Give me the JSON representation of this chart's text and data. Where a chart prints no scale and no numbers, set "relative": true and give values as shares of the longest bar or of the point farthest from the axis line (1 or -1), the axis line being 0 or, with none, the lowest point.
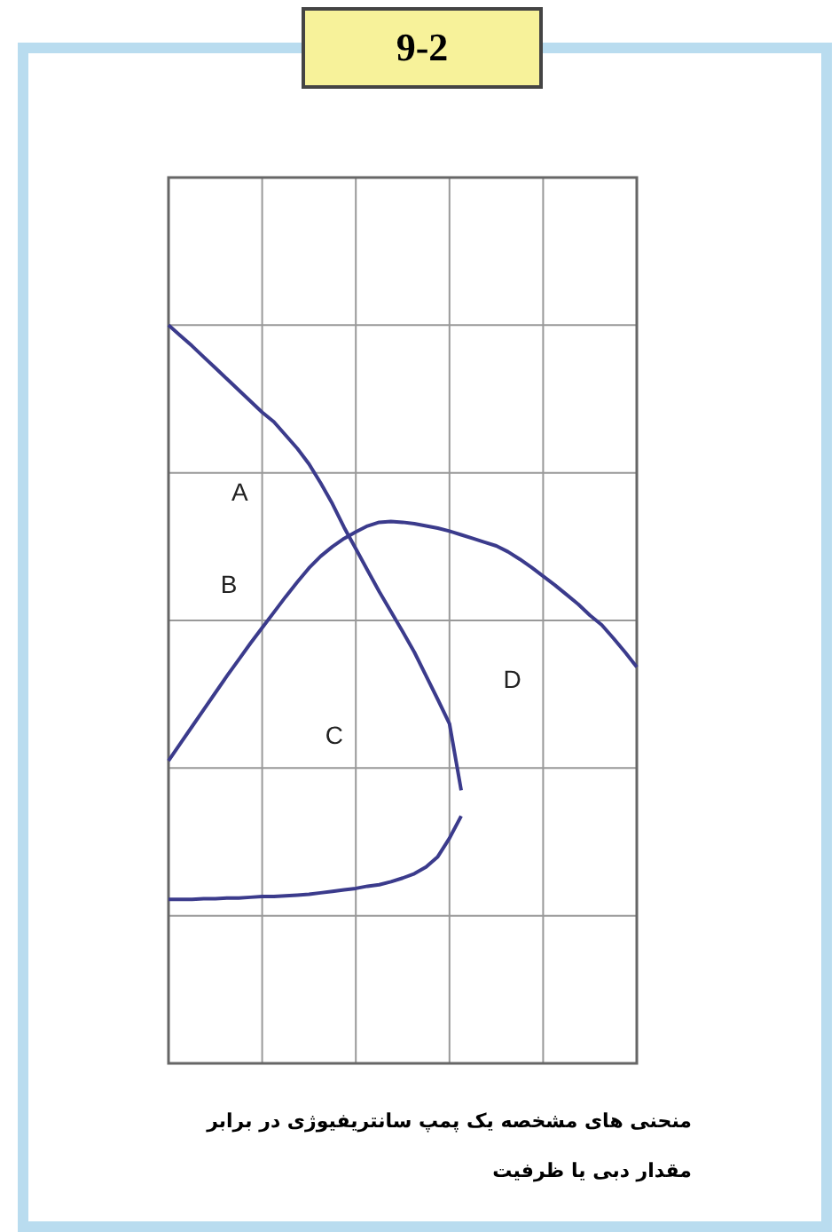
{
  "chart_data": {
    "type": "line",
    "title": "9-2",
    "relative": true,
    "grid": true,
    "marker": "none",
    "categories": [
      null,
      null,
      null,
      null,
      null,
      null,
      null,
      null,
      null,
      null,
      null,
      null,
      null,
      null,
      null,
      null,
      null,
      null,
      null,
      null,
      null,
      null,
      null,
      null,
      null,
      null,
      null,
      null,
      null,
      null,
      null,
      null,
      null,
      null,
      null,
      null,
      null,
      null,
      null,
      null,
      null
    ],
    "series": [
      {
        "color": "#3b3b8c",
        "values": [
          1,
          0.986,
          0.972,
          0.957,
          0.942,
          0.927,
          0.912,
          0.897,
          0.882,
          0.869,
          0.851,
          0.833,
          0.812,
          0.786,
          0.758,
          0.726,
          0.697,
          0.668,
          0.639,
          0.612,
          0.585,
          0.557,
          0.525,
          0.493,
          0.46,
          0.37,
          null,
          null,
          null,
          null,
          null,
          null,
          null,
          null,
          null,
          null,
          null,
          null,
          null,
          null,
          null
        ]
      },
      {
        "color": "#3b3b8c",
        "values": [
          0.222,
          0.222,
          0.222,
          0.223,
          0.223,
          0.224,
          0.224,
          0.225,
          0.226,
          0.226,
          0.227,
          0.228,
          0.229,
          0.231,
          0.233,
          0.235,
          0.237,
          0.24,
          0.242,
          0.246,
          0.251,
          0.257,
          0.266,
          0.28,
          0.305,
          0.335,
          null,
          null,
          null,
          null,
          null,
          null,
          null,
          null,
          null,
          null,
          null,
          null,
          null,
          null,
          null
        ]
      },
      {
        "color": "#3b3b8c",
        "values": [
          0.41,
          0.433,
          0.456,
          0.479,
          0.502,
          0.525,
          0.547,
          0.569,
          0.59,
          0.611,
          0.632,
          0.652,
          0.671,
          0.687,
          0.7,
          0.711,
          0.72,
          0.728,
          0.733,
          0.734,
          0.733,
          0.731,
          0.728,
          0.725,
          0.721,
          0.716,
          0.711,
          0.706,
          0.701,
          0.693,
          0.683,
          0.672,
          0.66,
          0.648,
          0.635,
          0.622,
          0.607,
          0.594,
          0.576,
          0.557,
          0.537
        ]
      }
    ],
    "annotations": [
      "A",
      "B",
      "C",
      "D",
      "منحنی های مشخصه یک پمپ سانتریفیوژی در برابر مقدار دبی یا ظرفیت"
    ]
  }
}
